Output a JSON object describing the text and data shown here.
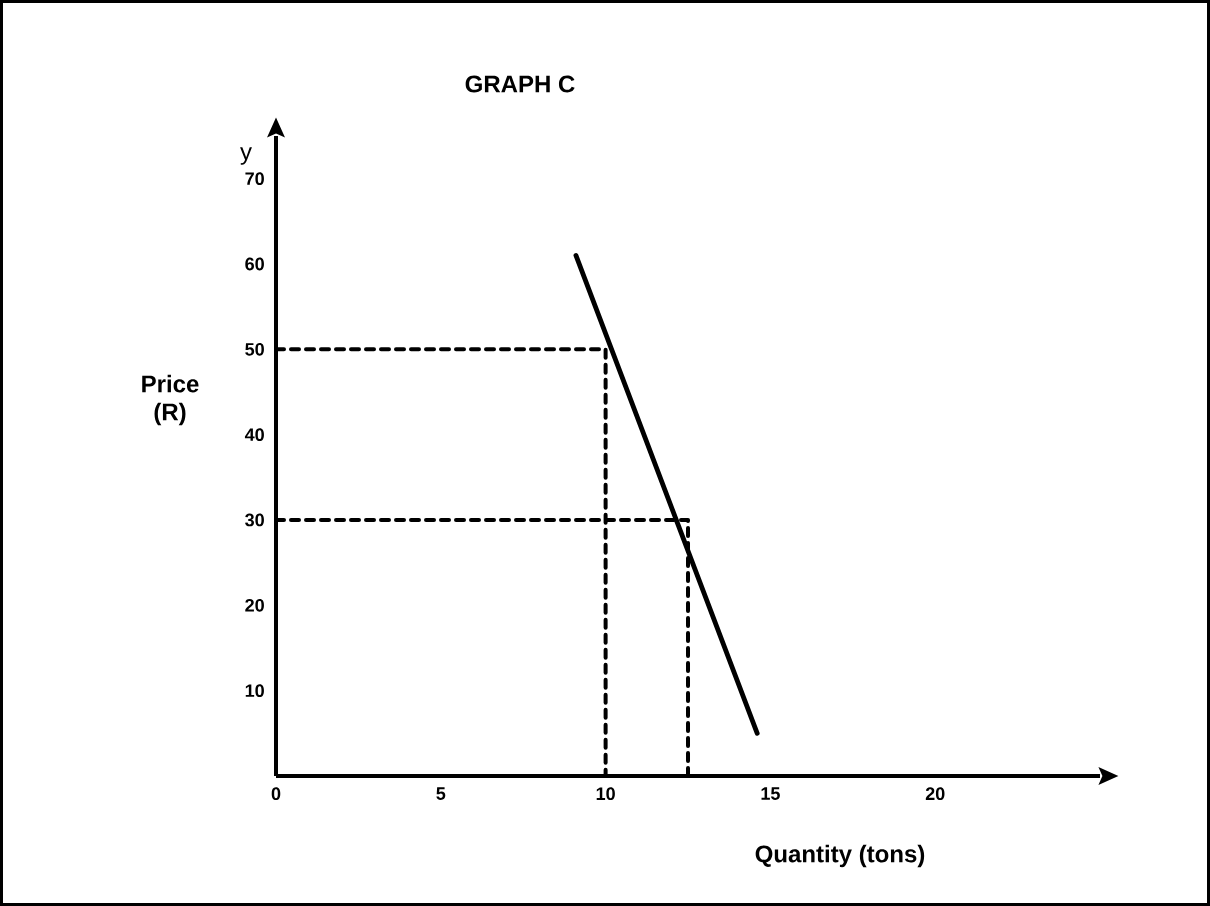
{
  "chart_data": {
    "type": "line",
    "title": "GRAPH C",
    "xlabel": "Quantity (tons)",
    "ylabel": "Price (R)",
    "annotations": [
      "y"
    ],
    "xlim": [
      0,
      25
    ],
    "ylim": [
      0,
      75
    ],
    "xticks": [
      0,
      5,
      10,
      15,
      20
    ],
    "yticks": [
      10,
      20,
      30,
      40,
      50,
      60,
      70
    ],
    "marker": "none",
    "series": [
      {
        "color": "#000000",
        "line_style": "solid",
        "x": [
          9.1,
          14.6
        ],
        "values": [
          61,
          5
        ]
      },
      {
        "color": "#000000",
        "line_style": "dashed",
        "x": [
          0,
          10,
          10
        ],
        "values": [
          50,
          50,
          0
        ]
      },
      {
        "color": "#000000",
        "line_style": "dashed",
        "x": [
          0,
          12.5,
          12.5
        ],
        "values": [
          30,
          30,
          0
        ]
      }
    ]
  }
}
